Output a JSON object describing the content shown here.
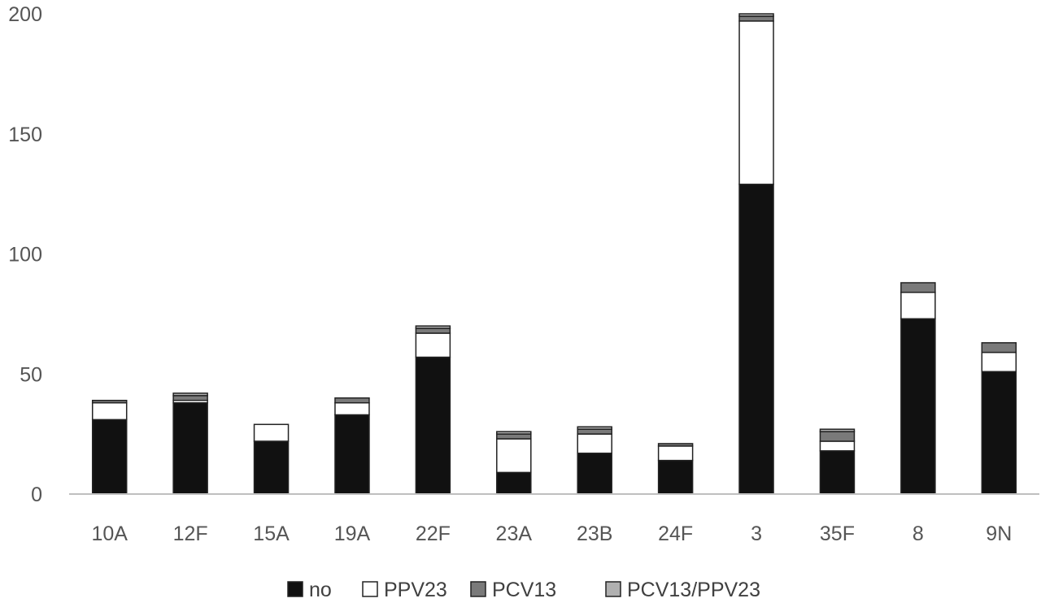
{
  "chart_data": {
    "type": "bar",
    "stacked": true,
    "title": "",
    "xlabel": "",
    "ylabel": "",
    "ylim": [
      0,
      200
    ],
    "yticks": [
      0,
      50,
      100,
      150,
      200
    ],
    "grid": false,
    "legend_position": "bottom",
    "categories": [
      "10A",
      "12F",
      "15A",
      "19A",
      "22F",
      "23A",
      "23B",
      "24F",
      "3",
      "35F",
      "8",
      "9N"
    ],
    "series": [
      {
        "name": "no",
        "color": "#111111",
        "values": [
          31,
          38,
          22,
          33,
          57,
          9,
          17,
          14,
          129,
          18,
          73,
          51
        ]
      },
      {
        "name": "PPV23",
        "color": "#ffffff",
        "values": [
          7,
          1,
          7,
          5,
          10,
          14,
          8,
          6,
          68,
          4,
          11,
          8
        ]
      },
      {
        "name": "PCV13",
        "color": "#7a7a7a",
        "values": [
          1,
          2,
          0,
          2,
          2,
          2,
          2,
          1,
          2,
          4,
          4,
          4
        ]
      },
      {
        "name": "PCV13/PPV23",
        "color": "#b0b0b0",
        "values": [
          0,
          1,
          0,
          0,
          1,
          1,
          1,
          0,
          1,
          1,
          0,
          0
        ]
      }
    ]
  }
}
